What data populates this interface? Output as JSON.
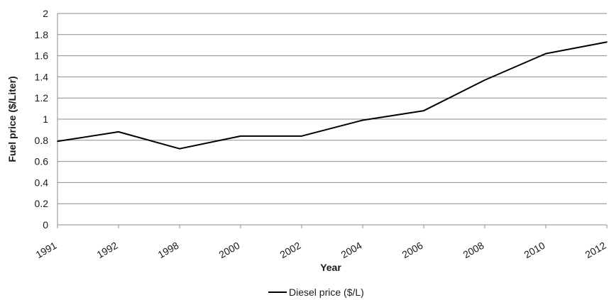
{
  "chart_data": {
    "type": "line",
    "title": "",
    "xlabel": "Year",
    "ylabel": "Fuel price ($/Liter)",
    "categories": [
      "1991",
      "1992",
      "1998",
      "2000",
      "2002",
      "2004",
      "2006",
      "2008",
      "2010",
      "2012"
    ],
    "y_ticks": [
      "0",
      "0.2",
      "0.4",
      "0.6",
      "0.8",
      "1",
      "1.2",
      "1.4",
      "1.6",
      "1.8",
      "2"
    ],
    "ylim": [
      0,
      2
    ],
    "grid": "horizontal",
    "legend_position": "bottom",
    "series": [
      {
        "name": "Diesel price ($/L)",
        "color": "#000000",
        "values": [
          0.79,
          0.88,
          0.72,
          0.84,
          0.84,
          0.99,
          1.08,
          1.37,
          1.62,
          1.73
        ]
      }
    ]
  }
}
